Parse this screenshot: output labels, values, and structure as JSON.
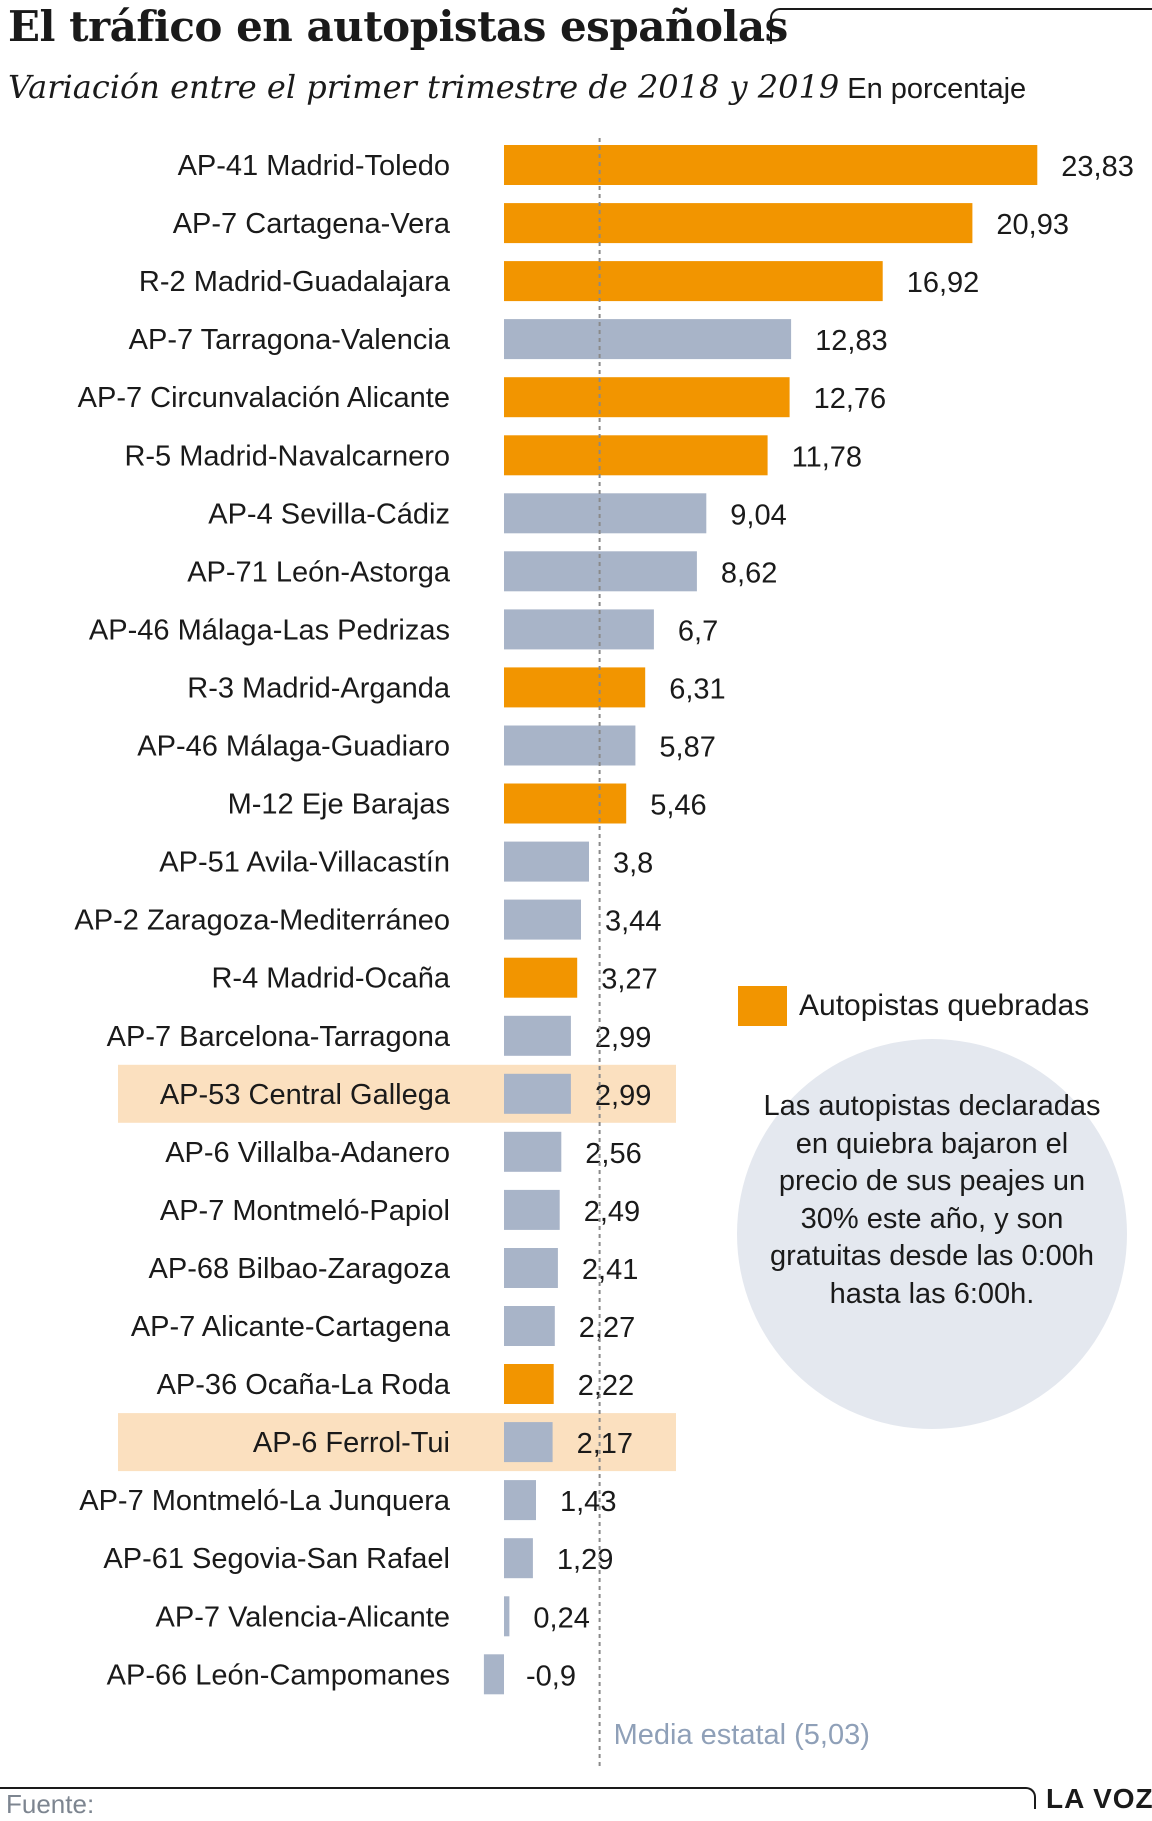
{
  "header": {
    "title": "El tráfico en autopistas españolas",
    "subtitle": "Variación entre el primer trimestre de 2018 y 2019",
    "unit": "En porcentaje"
  },
  "legend": {
    "label": "Autopistas quebradas",
    "color": "#f29500"
  },
  "note": {
    "text": "Las autopistas declaradas en quiebra bajaron el precio de sus peajes un 30% este año, y son gratuitas desde las 0:00h hasta las 6:00h."
  },
  "footer": {
    "source": "Fuente:",
    "brand": "LA VOZ"
  },
  "colors": {
    "quebrada": "#f29500",
    "normal": "#a8b4c8",
    "highlight": "#fbe0bf",
    "mean_line": "#8a8a8a",
    "mean_label": "#8fa0b8",
    "text": "#1a1a1a"
  },
  "chart_data": {
    "type": "bar",
    "orientation": "horizontal",
    "categories": [
      "AP-41 Madrid-Toledo",
      "AP-7 Cartagena-Vera",
      "R-2 Madrid-Guadalajara",
      "AP-7 Tarragona-Valencia",
      "AP-7 Circunvalación Alicante",
      "R-5 Madrid-Navalcarnero",
      "AP-4 Sevilla-Cádiz",
      "AP-71 León-Astorga",
      "AP-46 Málaga-Las Pedrizas",
      "R-3 Madrid-Arganda",
      "AP-46 Málaga-Guadiaro",
      "M-12 Eje Barajas",
      "AP-51 Avila-Villacastín",
      "AP-2 Zaragoza-Mediterráneo",
      "R-4 Madrid-Ocaña",
      "AP-7 Barcelona-Tarragona",
      "AP-53 Central Gallega",
      "AP-6 Villalba-Adanero",
      "AP-7 Montmeló-Papiol",
      "AP-68 Bilbao-Zaragoza",
      "AP-7 Alicante-Cartagena",
      "AP-36 Ocaña-La Roda",
      "AP-6 Ferrol-Tui",
      "AP-7 Montmeló-La Junquera",
      "AP-61 Segovia-San Rafael",
      "AP-7 Valencia-Alicante",
      "AP-66 León-Campomanes"
    ],
    "values": [
      23.83,
      20.93,
      16.92,
      12.83,
      12.76,
      11.78,
      9.04,
      8.62,
      6.7,
      6.31,
      5.87,
      5.46,
      3.8,
      3.44,
      3.27,
      2.99,
      2.99,
      2.56,
      2.49,
      2.41,
      2.27,
      2.22,
      2.17,
      1.43,
      1.29,
      0.24,
      -0.9
    ],
    "value_labels": [
      "23,83",
      "20,93",
      "16,92",
      "12,83",
      "12,76",
      "11,78",
      "9,04",
      "8,62",
      "6,7",
      "6,31",
      "5,87",
      "5,46",
      "3,8",
      "3,44",
      "3,27",
      "2,99",
      "2,99",
      "2,56",
      "2,49",
      "2,41",
      "2,27",
      "2,22",
      "2,17",
      "1,43",
      "1,29",
      "0,24",
      "-0,9"
    ],
    "quebrada": [
      true,
      true,
      true,
      false,
      true,
      true,
      false,
      false,
      false,
      true,
      false,
      true,
      false,
      false,
      true,
      false,
      false,
      false,
      false,
      false,
      false,
      true,
      false,
      false,
      false,
      false,
      false
    ],
    "highlighted": [
      "AP-53 Central Gallega",
      "AP-6 Ferrol-Tui"
    ],
    "reference_line": {
      "value": 5.03,
      "label": "Media estatal (5,03)"
    },
    "xlim": [
      -0.9,
      23.83
    ],
    "grid": false
  }
}
